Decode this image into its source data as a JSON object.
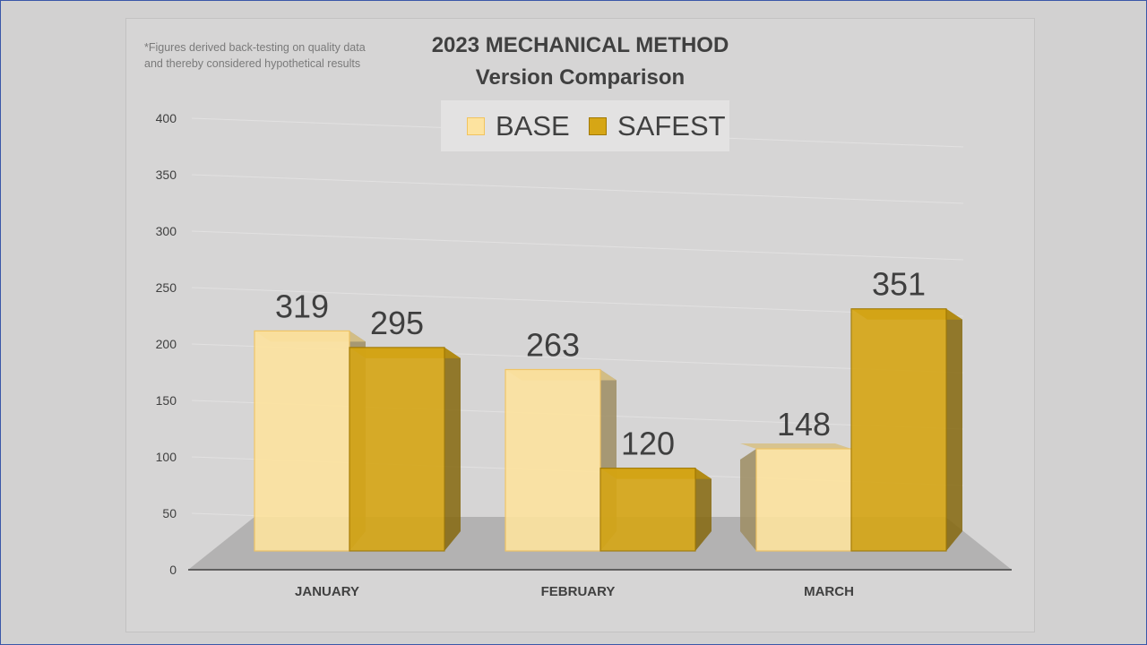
{
  "note": {
    "line1": "*Figures derived back-testing on quality data",
    "line2": "and thereby considered hypothetical results"
  },
  "chart_data": {
    "type": "bar",
    "title": "2023 MECHANICAL METHOD",
    "subtitle": "Version Comparison",
    "categories": [
      "JANUARY",
      "FEBRUARY",
      "MARCH"
    ],
    "series": [
      {
        "name": "BASE",
        "values": [
          319,
          263,
          148
        ],
        "data_labels": [
          "319",
          "263",
          "148"
        ],
        "color": "#fde39f",
        "edge": "#f2c45e"
      },
      {
        "name": "SAFEST",
        "values": [
          295,
          120,
          351
        ],
        "data_labels": [
          "295",
          "120",
          "351"
        ],
        "color": "#d6a615",
        "edge": "#a07800"
      }
    ],
    "ylim": [
      0,
      400
    ],
    "yticks": [
      "0",
      "50",
      "100",
      "150",
      "200",
      "250",
      "300",
      "350",
      "400"
    ],
    "grid": true,
    "legend": "top-center",
    "xlabel": "",
    "ylabel": ""
  }
}
